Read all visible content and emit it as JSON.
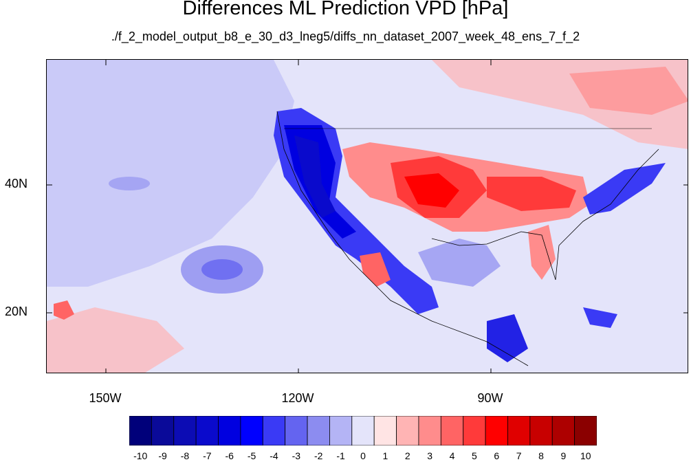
{
  "title": "Differences ML Prediction VPD [hPa]",
  "subtitle": "./f_2_model_output_b8_e_30_d3_lneg5/diffs_nn_dataset_2007_week_48_ens_7_f_2",
  "lat_labels": [
    "40N",
    "20N"
  ],
  "lon_labels": [
    "150W",
    "120W",
    "90W"
  ],
  "colorbar": {
    "labels": [
      "-10",
      "-9",
      "-8",
      "-7",
      "-6",
      "-5",
      "-4",
      "-3",
      "-2",
      "-1",
      "0",
      "1",
      "2",
      "3",
      "4",
      "5",
      "6",
      "7",
      "8",
      "9",
      "10"
    ],
    "colors": [
      "#00007a",
      "#0a0a99",
      "#0c0cb4",
      "#0a0acc",
      "#0000e0",
      "#0000ff",
      "#3a3af5",
      "#6464f0",
      "#8c8cf0",
      "#b4b4f5",
      "#e4e4fa",
      "#ffe4e4",
      "#ffb4b4",
      "#ff8c8c",
      "#ff6464",
      "#ff3a3a",
      "#ff0000",
      "#e00000",
      "#c80000",
      "#ad0000",
      "#8b0000"
    ]
  },
  "colors": {
    "ocean_base": "#e4e4fa",
    "pos": "#ff6464",
    "neg": "#0000e0"
  }
}
